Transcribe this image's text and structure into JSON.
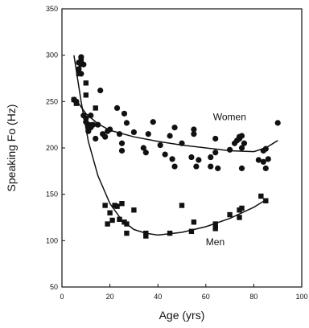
{
  "chart_data": {
    "type": "scatter",
    "xlabel": "Age (yrs)",
    "ylabel": "Speaking Fo (Hz)",
    "xlim": [
      0,
      100
    ],
    "ylim": [
      50,
      350
    ],
    "xticks": [
      0,
      20,
      40,
      60,
      80,
      100
    ],
    "yticks": [
      50,
      100,
      150,
      200,
      250,
      300,
      350
    ],
    "grid": false,
    "series": [
      {
        "name": "Women",
        "marker": "circle",
        "color": "#111111",
        "points": [
          [
            5,
            252
          ],
          [
            6,
            250
          ],
          [
            7,
            292
          ],
          [
            7,
            285
          ],
          [
            8,
            280
          ],
          [
            8,
            298
          ],
          [
            9,
            290
          ],
          [
            9,
            235
          ],
          [
            10,
            232
          ],
          [
            10,
            228
          ],
          [
            11,
            225
          ],
          [
            11,
            218
          ],
          [
            12,
            222
          ],
          [
            12,
            235
          ],
          [
            13,
            225
          ],
          [
            14,
            210
          ],
          [
            15,
            225
          ],
          [
            16,
            262
          ],
          [
            17,
            215
          ],
          [
            18,
            212
          ],
          [
            19,
            218
          ],
          [
            20,
            220
          ],
          [
            23,
            243
          ],
          [
            24,
            215
          ],
          [
            25,
            205
          ],
          [
            25,
            197
          ],
          [
            26,
            237
          ],
          [
            27,
            227
          ],
          [
            30,
            217
          ],
          [
            34,
            200
          ],
          [
            35,
            195
          ],
          [
            36,
            215
          ],
          [
            38,
            228
          ],
          [
            41,
            203
          ],
          [
            43,
            193
          ],
          [
            45,
            213
          ],
          [
            46,
            188
          ],
          [
            47,
            180
          ],
          [
            47,
            222
          ],
          [
            50,
            205
          ],
          [
            54,
            190
          ],
          [
            55,
            220
          ],
          [
            55,
            215
          ],
          [
            56,
            180
          ],
          [
            57,
            187
          ],
          [
            62,
            190
          ],
          [
            62,
            180
          ],
          [
            64,
            210
          ],
          [
            64,
            195
          ],
          [
            65,
            178
          ],
          [
            70,
            198
          ],
          [
            72,
            205
          ],
          [
            73,
            208
          ],
          [
            74,
            210
          ],
          [
            74,
            212
          ],
          [
            75,
            213
          ],
          [
            75,
            200
          ],
          [
            76,
            205
          ],
          [
            75,
            178
          ],
          [
            82,
            187
          ],
          [
            84,
            185
          ],
          [
            84,
            197
          ],
          [
            85,
            199
          ],
          [
            85,
            178
          ],
          [
            86,
            188
          ],
          [
            90,
            227
          ]
        ],
        "fit": [
          [
            5,
            255
          ],
          [
            10,
            237
          ],
          [
            15,
            226
          ],
          [
            20,
            219
          ],
          [
            30,
            212
          ],
          [
            40,
            207
          ],
          [
            50,
            203
          ],
          [
            60,
            200
          ],
          [
            70,
            197
          ],
          [
            80,
            196
          ],
          [
            85,
            200
          ],
          [
            90,
            208
          ]
        ]
      },
      {
        "name": "Men",
        "marker": "square",
        "color": "#111111",
        "points": [
          [
            5,
            252
          ],
          [
            6,
            248
          ],
          [
            7,
            280
          ],
          [
            8,
            295
          ],
          [
            8,
            290
          ],
          [
            10,
            270
          ],
          [
            10,
            257
          ],
          [
            11,
            220
          ],
          [
            12,
            225
          ],
          [
            14,
            243
          ],
          [
            18,
            138
          ],
          [
            19,
            118
          ],
          [
            20,
            130
          ],
          [
            21,
            122
          ],
          [
            22,
            138
          ],
          [
            23,
            137
          ],
          [
            24,
            123
          ],
          [
            25,
            140
          ],
          [
            26,
            120
          ],
          [
            27,
            118
          ],
          [
            27,
            108
          ],
          [
            30,
            133
          ],
          [
            35,
            108
          ],
          [
            35,
            105
          ],
          [
            45,
            108
          ],
          [
            50,
            138
          ],
          [
            54,
            110
          ],
          [
            55,
            120
          ],
          [
            64,
            113
          ],
          [
            64,
            118
          ],
          [
            70,
            128
          ],
          [
            74,
            125
          ],
          [
            74,
            133
          ],
          [
            75,
            135
          ],
          [
            83,
            148
          ],
          [
            85,
            143
          ]
        ],
        "fit": [
          [
            5,
            300
          ],
          [
            8,
            250
          ],
          [
            11,
            207
          ],
          [
            15,
            170
          ],
          [
            20,
            140
          ],
          [
            25,
            122
          ],
          [
            30,
            112
          ],
          [
            35,
            108
          ],
          [
            40,
            106
          ],
          [
            50,
            109
          ],
          [
            60,
            115
          ],
          [
            70,
            124
          ],
          [
            80,
            136
          ],
          [
            85,
            144
          ]
        ]
      }
    ],
    "annotations": [
      {
        "text": "Women",
        "x": 63,
        "y": 230
      },
      {
        "text": "Men",
        "x": 60,
        "y": 95
      }
    ]
  }
}
